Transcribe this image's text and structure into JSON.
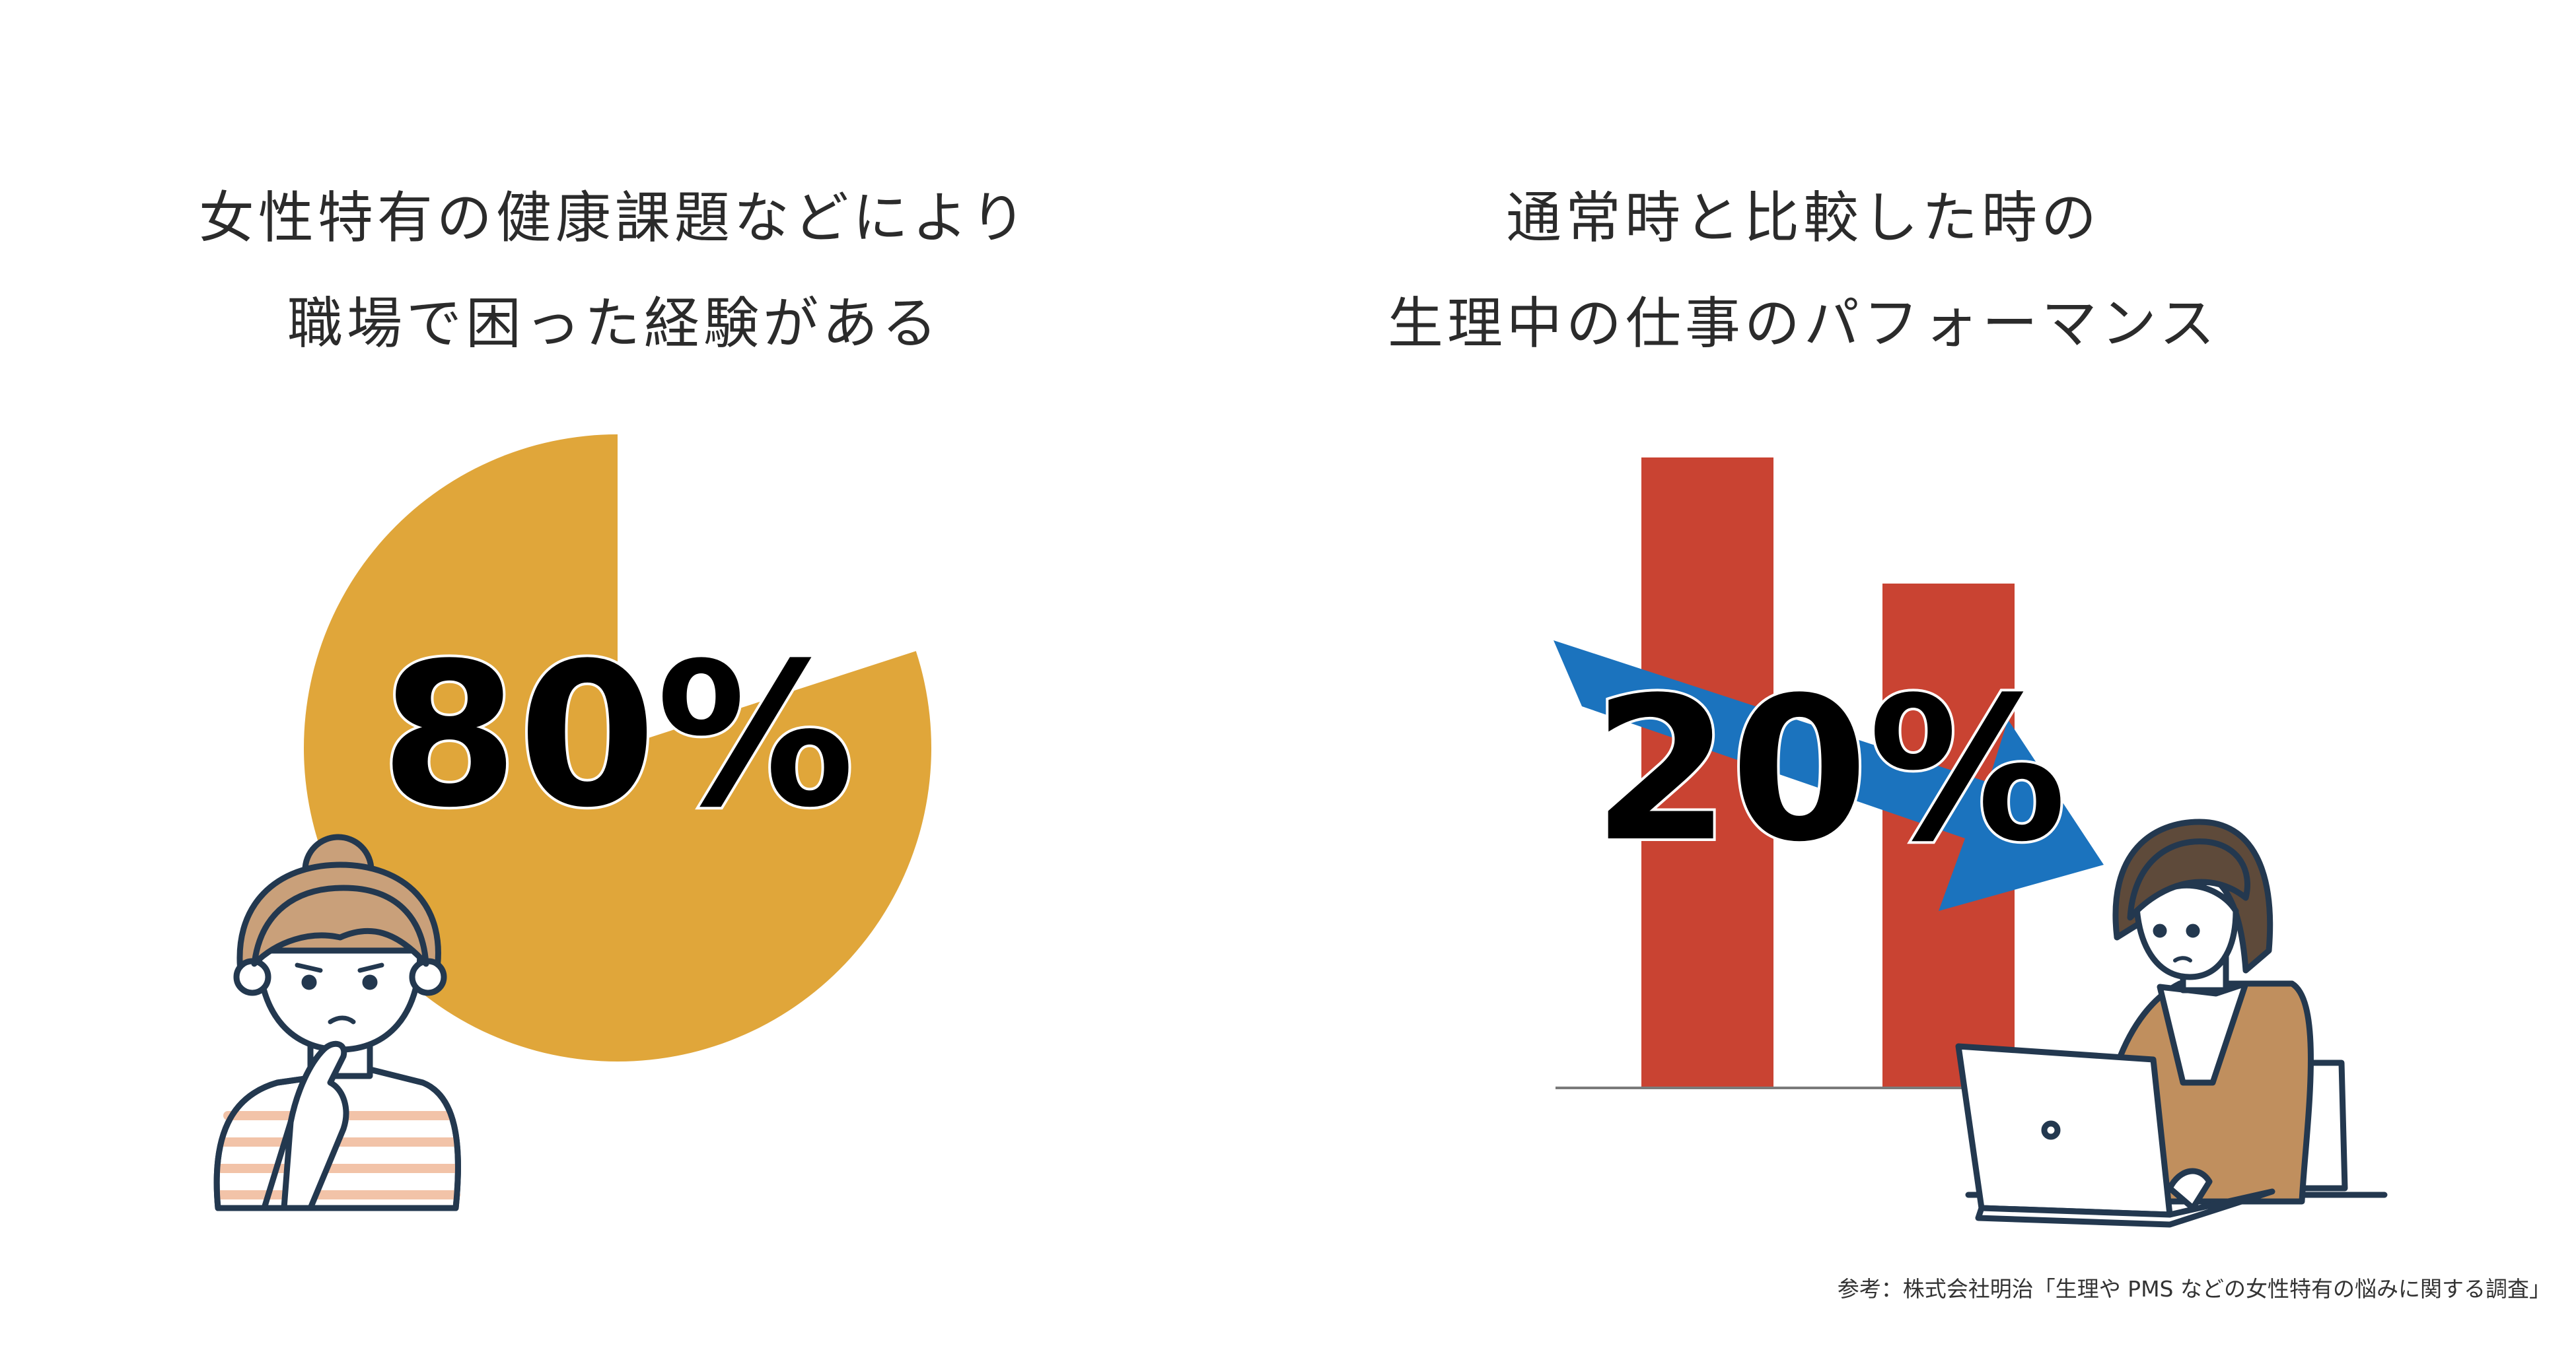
{
  "left": {
    "title_line1": "女性特有の健康課題などにより",
    "title_line2": "職場で困った経験がある",
    "big_value": "80%"
  },
  "right": {
    "title_line1": "通常時と比較した時の",
    "title_line2": "生理中の仕事のパフォーマンス",
    "big_value": "20%"
  },
  "source": "参考：株式会社明治「生理や PMS などの女性特有の悩みに関する調査」",
  "colors": {
    "pie": "#E0A63A",
    "bar": "#C94332",
    "arrow": "#1B73BE",
    "outline": "#23384F"
  },
  "icons": {
    "left_person": "thinking-woman-illustration",
    "right_person": "worried-woman-laptop-illustration"
  },
  "chart_data": [
    {
      "type": "pie",
      "title": "女性特有の健康課題などにより職場で困った経験がある",
      "slices": [
        {
          "label": "",
          "value": 80
        },
        {
          "label": "",
          "value": 20
        }
      ],
      "data_label": "80%"
    },
    {
      "type": "bar",
      "title": "通常時と比較した時の生理中の仕事のパフォーマンス",
      "categories": [
        "",
        ""
      ],
      "values": [
        100,
        80
      ],
      "ylim": [
        0,
        100
      ],
      "annotation": "20%"
    }
  ]
}
